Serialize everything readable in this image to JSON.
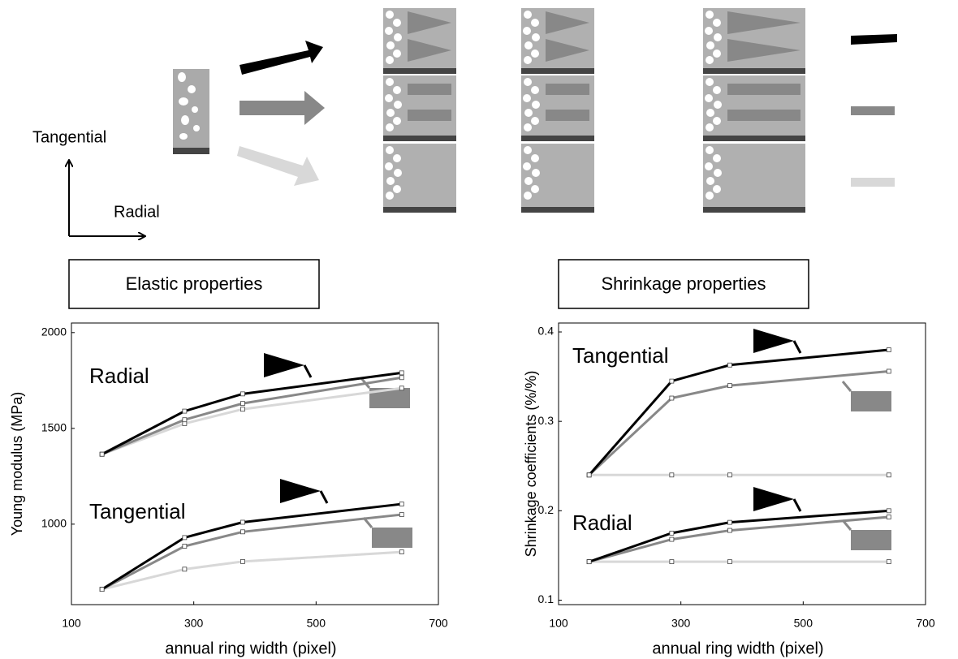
{
  "diagram": {
    "labels": [
      "Tangential",
      "Radial"
    ]
  },
  "chart_data": [
    {
      "type": "line",
      "title": "Elastic properties",
      "xlabel": "annual ring width (pixel)",
      "ylabel": "Young modulus (MPa)",
      "xlim": [
        100,
        700
      ],
      "xticks": [
        100,
        300,
        500,
        700
      ],
      "ylim": [
        580,
        2050
      ],
      "yticks": [
        1000,
        1500,
        2000
      ],
      "x": [
        150,
        285,
        380,
        640
      ],
      "annotations": [
        "Radial",
        "Tangential"
      ],
      "series": [
        {
          "color": "#000000",
          "values": [
            1365,
            1590,
            1680,
            1790
          ]
        },
        {
          "color": "#888888",
          "values": [
            1365,
            1545,
            1630,
            1765
          ]
        },
        {
          "color": "#d8d8d8",
          "values": [
            1365,
            1525,
            1600,
            1710
          ]
        },
        {
          "color": "#000000",
          "values": [
            660,
            930,
            1010,
            1105
          ]
        },
        {
          "color": "#888888",
          "values": [
            660,
            885,
            960,
            1050
          ]
        },
        {
          "color": "#d8d8d8",
          "values": [
            660,
            765,
            805,
            855
          ]
        }
      ]
    },
    {
      "type": "line",
      "title": "Shrinkage properties",
      "xlabel": "annual ring width (pixel)",
      "ylabel": "Shrinkage coefficients (%/%)",
      "xlim": [
        100,
        700
      ],
      "xticks": [
        100,
        300,
        500,
        700
      ],
      "ylim": [
        0.095,
        0.41
      ],
      "yticks": [
        0.1,
        0.2,
        0.3,
        0.4
      ],
      "x": [
        150,
        285,
        380,
        640
      ],
      "annotations": [
        "Tangential",
        "Radial"
      ],
      "series": [
        {
          "color": "#000000",
          "values": [
            0.24,
            0.345,
            0.363,
            0.38
          ]
        },
        {
          "color": "#888888",
          "values": [
            0.24,
            0.326,
            0.34,
            0.356
          ]
        },
        {
          "color": "#d8d8d8",
          "values": [
            0.24,
            0.24,
            0.24,
            0.24
          ]
        },
        {
          "color": "#000000",
          "values": [
            0.143,
            0.175,
            0.187,
            0.2
          ]
        },
        {
          "color": "#888888",
          "values": [
            0.143,
            0.168,
            0.178,
            0.193
          ]
        },
        {
          "color": "#d8d8d8",
          "values": [
            0.143,
            0.143,
            0.143,
            0.143
          ]
        }
      ]
    }
  ]
}
